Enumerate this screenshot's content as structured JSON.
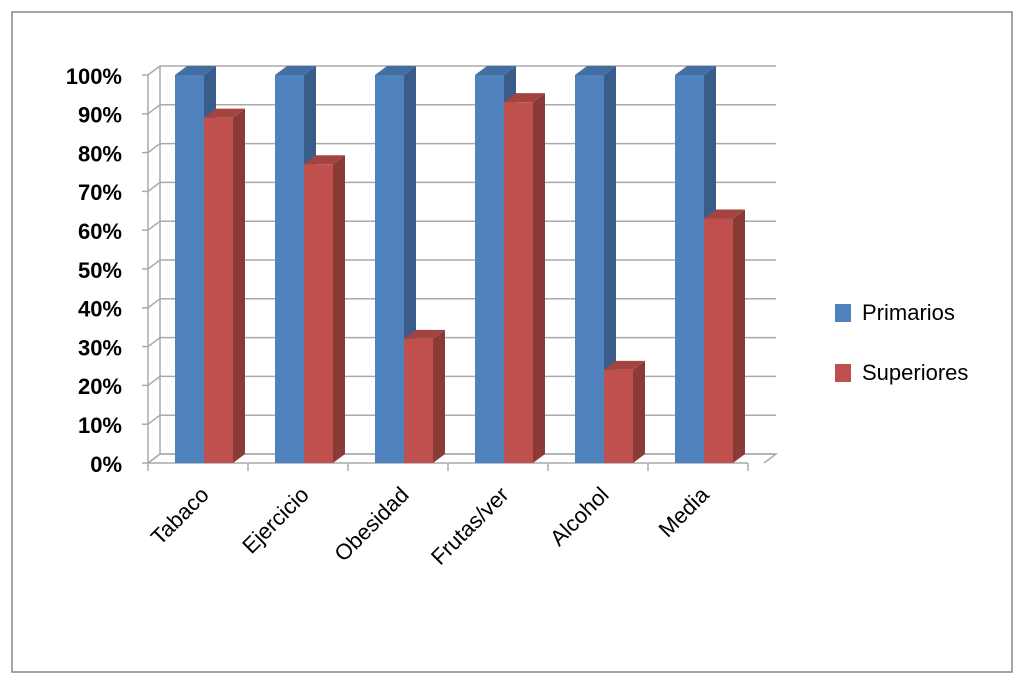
{
  "chart_data": {
    "type": "bar3d",
    "categories": [
      "Tabaco",
      "Ejercicio",
      "Obesidad",
      "Frutas/ver",
      "Alcohol",
      "Media"
    ],
    "series": [
      {
        "name": "Primarios",
        "color": "#4f81bd",
        "values": [
          100,
          100,
          100,
          100,
          100,
          100
        ]
      },
      {
        "name": "Superiores",
        "color": "#c0504d",
        "values": [
          89,
          77,
          32,
          93,
          24,
          63
        ]
      }
    ],
    "ylim": [
      0,
      100
    ],
    "yticks": [
      {
        "value": 0,
        "label": "0%"
      },
      {
        "value": 10,
        "label": "10%"
      },
      {
        "value": 20,
        "label": "20%"
      },
      {
        "value": 30,
        "label": "30%"
      },
      {
        "value": 40,
        "label": "40%"
      },
      {
        "value": 50,
        "label": "50%"
      },
      {
        "value": 60,
        "label": "60%"
      },
      {
        "value": 70,
        "label": "70%"
      },
      {
        "value": 80,
        "label": "80%"
      },
      {
        "value": 90,
        "label": "90%"
      },
      {
        "value": 100,
        "label": "100%"
      }
    ],
    "grid": true,
    "legend": "right"
  }
}
